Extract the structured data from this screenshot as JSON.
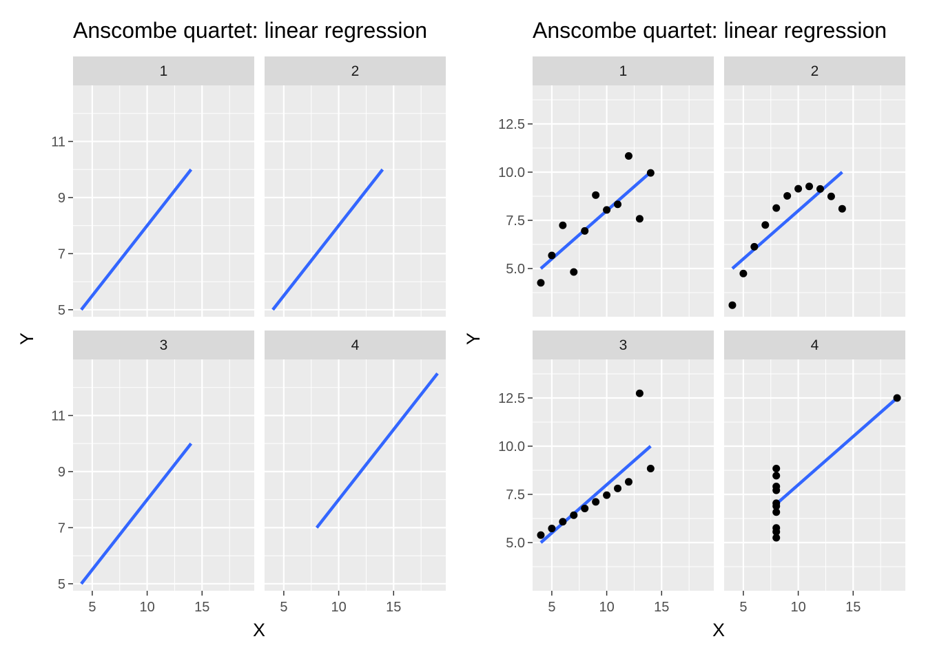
{
  "colors": {
    "panel_background": "#ebebeb",
    "grid_major": "#ffffff",
    "strip_background": "#d9d9d9",
    "regression_line": "#3366ff",
    "points": "#000000",
    "tick_label": "#4d4d4d",
    "tick_mark": "#333333"
  },
  "chart_data": [
    {
      "type": "line",
      "title": "Anscombe quartet: linear regression",
      "xlabel": "X",
      "ylabel": "Y",
      "xlim": [
        3.25,
        19.75
      ],
      "ylim": [
        4.75,
        13.0
      ],
      "x_ticks": [
        "5",
        "10",
        "15"
      ],
      "y_ticks": [
        "5",
        "7",
        "9",
        "11"
      ],
      "y_tick_values": [
        5,
        7,
        9,
        11
      ],
      "x_tick_values": [
        5,
        10,
        15
      ],
      "grid": true,
      "panels": [
        {
          "label": "1",
          "line": {
            "x": [
              4,
              14
            ],
            "y": [
              5.0,
              10.0
            ]
          }
        },
        {
          "label": "2",
          "line": {
            "x": [
              4,
              14
            ],
            "y": [
              5.0,
              10.0
            ]
          }
        },
        {
          "label": "3",
          "line": {
            "x": [
              4,
              14
            ],
            "y": [
              5.0,
              10.0
            ]
          }
        },
        {
          "label": "4",
          "line": {
            "x": [
              8,
              19
            ],
            "y": [
              7.0,
              12.5
            ]
          }
        }
      ]
    },
    {
      "type": "scatter",
      "title": "Anscombe quartet: linear regression",
      "xlabel": "X",
      "ylabel": "Y",
      "xlim": [
        3.25,
        19.75
      ],
      "ylim": [
        2.5,
        14.5
      ],
      "x_ticks": [
        "5",
        "10",
        "15"
      ],
      "y_ticks": [
        "5.0",
        "7.5",
        "10.0",
        "12.5"
      ],
      "y_tick_values": [
        5.0,
        7.5,
        10.0,
        12.5
      ],
      "x_tick_values": [
        5,
        10,
        15
      ],
      "grid": true,
      "panels": [
        {
          "label": "1",
          "points": {
            "x": [
              10,
              8,
              13,
              9,
              11,
              14,
              6,
              4,
              12,
              7,
              5
            ],
            "y": [
              8.04,
              6.95,
              7.58,
              8.81,
              8.33,
              9.96,
              7.24,
              4.26,
              10.84,
              4.82,
              5.68
            ]
          },
          "line": {
            "x": [
              4,
              14
            ],
            "y": [
              5.0,
              10.0
            ]
          }
        },
        {
          "label": "2",
          "points": {
            "x": [
              10,
              8,
              13,
              9,
              11,
              14,
              6,
              4,
              12,
              7,
              5
            ],
            "y": [
              9.14,
              8.14,
              8.74,
              8.77,
              9.26,
              8.1,
              6.13,
              3.1,
              9.13,
              7.26,
              4.74
            ]
          },
          "line": {
            "x": [
              4,
              14
            ],
            "y": [
              5.0,
              10.0
            ]
          }
        },
        {
          "label": "3",
          "points": {
            "x": [
              10,
              8,
              13,
              9,
              11,
              14,
              6,
              4,
              12,
              7,
              5
            ],
            "y": [
              7.46,
              6.77,
              12.74,
              7.11,
              7.81,
              8.84,
              6.08,
              5.39,
              8.15,
              6.42,
              5.73
            ]
          },
          "line": {
            "x": [
              4,
              14
            ],
            "y": [
              5.0,
              10.0
            ]
          }
        },
        {
          "label": "4",
          "points": {
            "x": [
              8,
              8,
              8,
              8,
              8,
              8,
              8,
              19,
              8,
              8,
              8
            ],
            "y": [
              6.58,
              5.76,
              7.71,
              8.84,
              8.47,
              7.04,
              5.25,
              12.5,
              5.56,
              7.91,
              6.89
            ]
          },
          "line": {
            "x": [
              8,
              19
            ],
            "y": [
              7.0,
              12.5
            ]
          }
        }
      ]
    }
  ]
}
